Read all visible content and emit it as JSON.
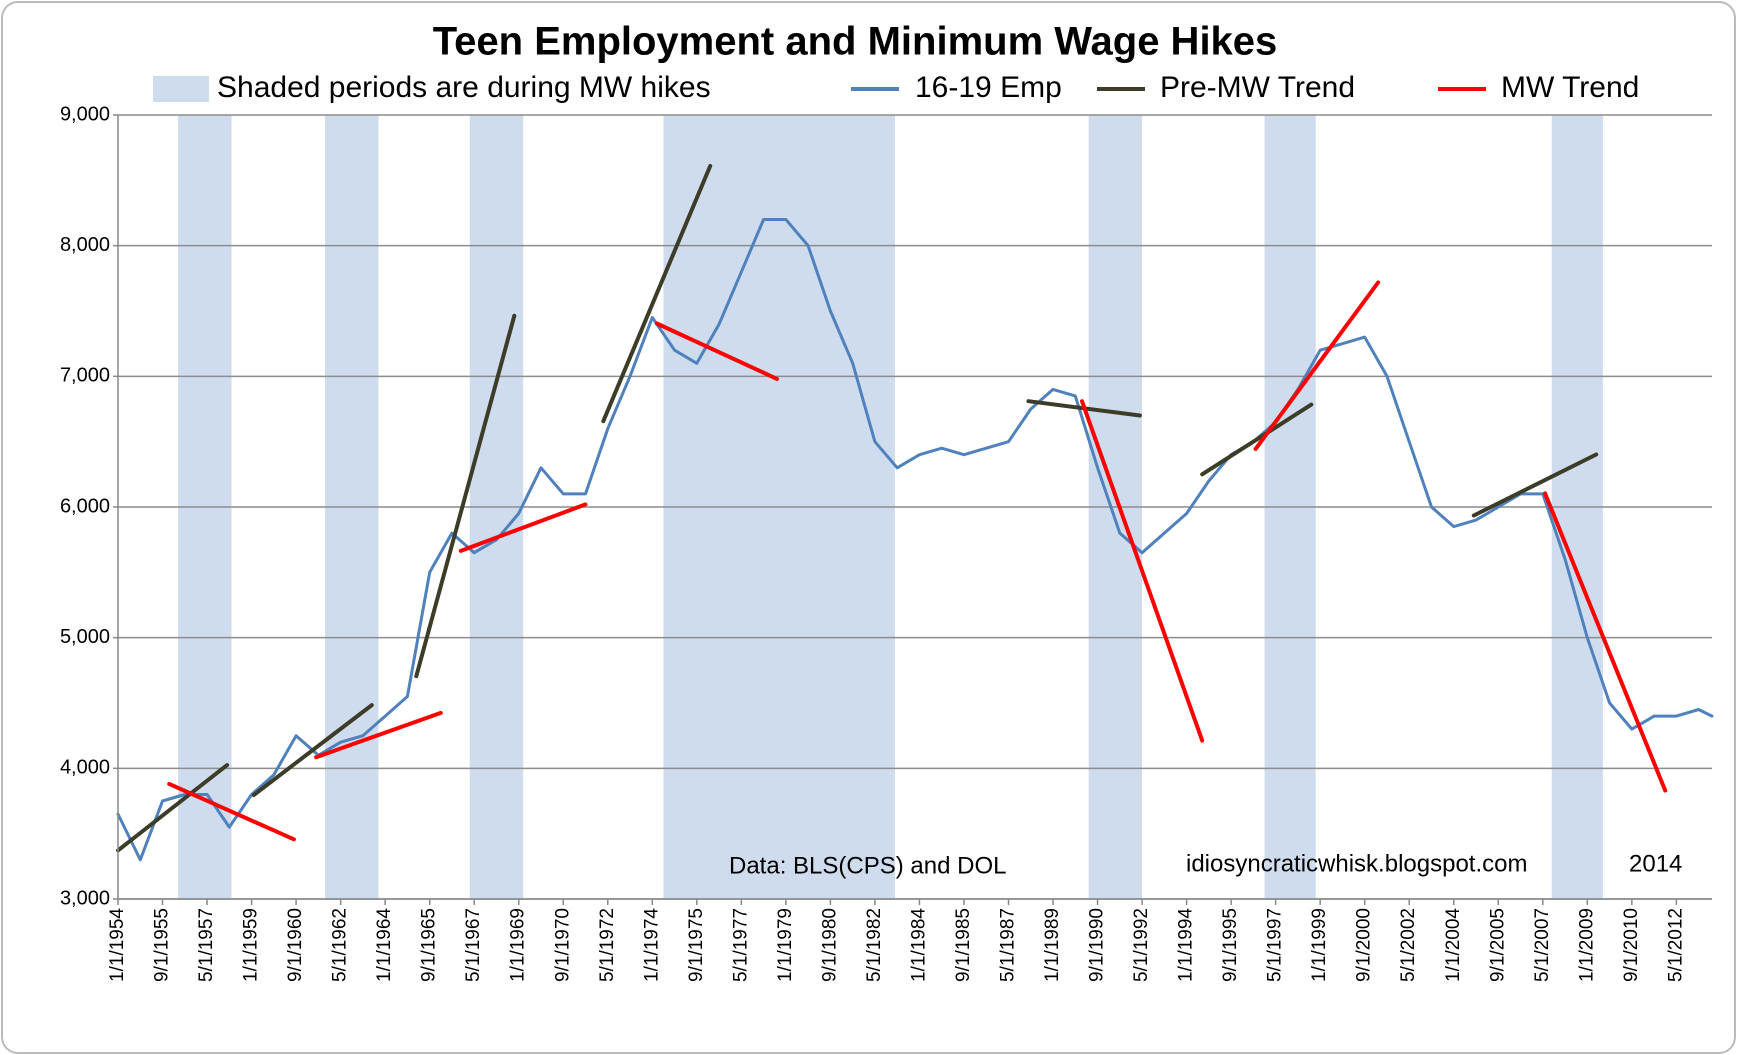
{
  "chart_data": {
    "type": "line",
    "title": "Teen Employment and Minimum Wage Hikes",
    "xlim": [
      "1954-01",
      "2013-09"
    ],
    "xticks": [
      {
        "value": "1954-01",
        "label": "1/1/1954"
      },
      {
        "value": "1955-09",
        "label": "9/1/1955"
      },
      {
        "value": "1957-05",
        "label": "5/1/1957"
      },
      {
        "value": "1959-01",
        "label": "1/1/1959"
      },
      {
        "value": "1960-09",
        "label": "9/1/1960"
      },
      {
        "value": "1962-05",
        "label": "5/1/1962"
      },
      {
        "value": "1964-01",
        "label": "1/1/1964"
      },
      {
        "value": "1965-09",
        "label": "9/1/1965"
      },
      {
        "value": "1967-05",
        "label": "5/1/1967"
      },
      {
        "value": "1969-01",
        "label": "1/1/1969"
      },
      {
        "value": "1970-09",
        "label": "9/1/1970"
      },
      {
        "value": "1972-05",
        "label": "5/1/1972"
      },
      {
        "value": "1974-01",
        "label": "1/1/1974"
      },
      {
        "value": "1975-09",
        "label": "9/1/1975"
      },
      {
        "value": "1977-05",
        "label": "5/1/1977"
      },
      {
        "value": "1979-01",
        "label": "1/1/1979"
      },
      {
        "value": "1980-09",
        "label": "9/1/1980"
      },
      {
        "value": "1982-05",
        "label": "5/1/1982"
      },
      {
        "value": "1984-01",
        "label": "1/1/1984"
      },
      {
        "value": "1985-09",
        "label": "9/1/1985"
      },
      {
        "value": "1987-05",
        "label": "5/1/1987"
      },
      {
        "value": "1989-01",
        "label": "1/1/1989"
      },
      {
        "value": "1990-09",
        "label": "9/1/1990"
      },
      {
        "value": "1992-05",
        "label": "5/1/1992"
      },
      {
        "value": "1994-01",
        "label": "1/1/1994"
      },
      {
        "value": "1995-09",
        "label": "9/1/1995"
      },
      {
        "value": "1997-05",
        "label": "5/1/1997"
      },
      {
        "value": "1999-01",
        "label": "1/1/1999"
      },
      {
        "value": "2000-09",
        "label": "9/1/2000"
      },
      {
        "value": "2002-05",
        "label": "5/1/2002"
      },
      {
        "value": "2004-01",
        "label": "1/1/2004"
      },
      {
        "value": "2005-09",
        "label": "9/1/2005"
      },
      {
        "value": "2007-05",
        "label": "5/1/2007"
      },
      {
        "value": "2009-01",
        "label": "1/1/2009"
      },
      {
        "value": "2010-09",
        "label": "9/1/2010"
      },
      {
        "value": "2012-05",
        "label": "5/1/2012"
      }
    ],
    "ylim": [
      3000,
      9000
    ],
    "yticks": [
      {
        "value": 3000,
        "label": "3,000"
      },
      {
        "value": 4000,
        "label": "4,000"
      },
      {
        "value": 5000,
        "label": "5,000"
      },
      {
        "value": 6000,
        "label": "6,000"
      },
      {
        "value": 7000,
        "label": "7,000"
      },
      {
        "value": 8000,
        "label": "8,000"
      },
      {
        "value": 9000,
        "label": "9,000"
      }
    ],
    "grid": true,
    "shaded": {
      "name": "Shaded periods are during MW hikes",
      "color": "#cfdcee",
      "periods": [
        [
          "1956-04",
          "1958-04"
        ],
        [
          "1961-10",
          "1963-10"
        ],
        [
          "1967-03",
          "1969-03"
        ],
        [
          "1974-06",
          "1983-02"
        ],
        [
          "1990-05",
          "1992-05"
        ],
        [
          "1996-12",
          "1998-11"
        ],
        [
          "2007-09",
          "2009-08"
        ]
      ]
    },
    "series": [
      {
        "name": "16-19 Emp",
        "color": "#4f81bd",
        "x": [
          "1954-01",
          "1954-11",
          "1955-09",
          "1956-07",
          "1957-05",
          "1958-03",
          "1959-01",
          "1959-11",
          "1960-09",
          "1961-07",
          "1962-05",
          "1963-03",
          "1964-01",
          "1964-11",
          "1965-09",
          "1966-07",
          "1967-05",
          "1968-03",
          "1969-01",
          "1969-11",
          "1970-09",
          "1971-07",
          "1972-05",
          "1973-03",
          "1974-01",
          "1974-11",
          "1975-09",
          "1976-07",
          "1977-05",
          "1978-03",
          "1979-01",
          "1979-11",
          "1980-09",
          "1981-07",
          "1982-05",
          "1983-03",
          "1984-01",
          "1984-11",
          "1985-09",
          "1986-07",
          "1987-05",
          "1988-03",
          "1989-01",
          "1989-11",
          "1990-09",
          "1991-07",
          "1992-05",
          "1993-03",
          "1994-01",
          "1994-11",
          "1995-09",
          "1996-07",
          "1997-05",
          "1998-03",
          "1999-01",
          "1999-11",
          "2000-09",
          "2001-07",
          "2002-05",
          "2003-03",
          "2004-01",
          "2004-11",
          "2005-09",
          "2006-07",
          "2007-05",
          "2008-03",
          "2009-01",
          "2009-11",
          "2010-09",
          "2011-07",
          "2012-05",
          "2013-03",
          "2013-09"
        ],
        "values": [
          3650,
          3300,
          3750,
          3800,
          3800,
          3550,
          3800,
          3950,
          4250,
          4100,
          4200,
          4250,
          4400,
          4550,
          5500,
          5800,
          5650,
          5750,
          5950,
          6300,
          6100,
          6100,
          6600,
          7000,
          7450,
          7200,
          7100,
          7400,
          7800,
          8200,
          8200,
          8000,
          7500,
          7100,
          6500,
          6300,
          6400,
          6450,
          6400,
          6450,
          6500,
          6750,
          6900,
          6850,
          6300,
          5800,
          5650,
          5800,
          5950,
          6200,
          6400,
          6500,
          6650,
          6900,
          7200,
          7250,
          7300,
          7000,
          6500,
          6000,
          5850,
          5900,
          6000,
          6100,
          6100,
          5600,
          5000,
          4500,
          4300,
          4400,
          4400,
          4450,
          4400
        ]
      },
      {
        "name": "Pre-MW Trend",
        "color": "#3c3c28",
        "x": [
          "1954-01",
          "1958-02",
          null,
          "1959-02",
          "1963-07",
          null,
          "1965-03",
          "1968-11",
          null,
          "1972-03",
          "1976-03",
          null,
          "1988-02",
          "1992-04",
          null,
          "1994-08",
          "1998-09",
          null,
          "2004-10",
          "2009-05"
        ],
        "values": [
          3372,
          4025,
          null,
          3796,
          4484,
          null,
          4705,
          7463,
          null,
          6657,
          8610,
          null,
          6810,
          6700,
          null,
          6250,
          6784,
          null,
          5935,
          6402
        ]
      },
      {
        "name": "MW Trend",
        "color": "#ff0000",
        "x": [
          "1955-12",
          "1960-08",
          null,
          "1961-06",
          "1966-02",
          null,
          "1966-11",
          "1971-07",
          null,
          "1974-03",
          "1978-09",
          null,
          "1990-02",
          "1994-08",
          null,
          "1996-08",
          "2001-03",
          null,
          "2007-06",
          "2011-12"
        ],
        "values": [
          3881,
          3457,
          null,
          4085,
          4424,
          null,
          5664,
          6020,
          null,
          7404,
          6980,
          null,
          6810,
          4212,
          null,
          6445,
          7718,
          null,
          6105,
          3830
        ]
      }
    ],
    "annotations": [
      "Data: BLS(CPS) and DOL",
      "idiosyncraticwhisk.blogspot.com",
      "2014"
    ]
  }
}
